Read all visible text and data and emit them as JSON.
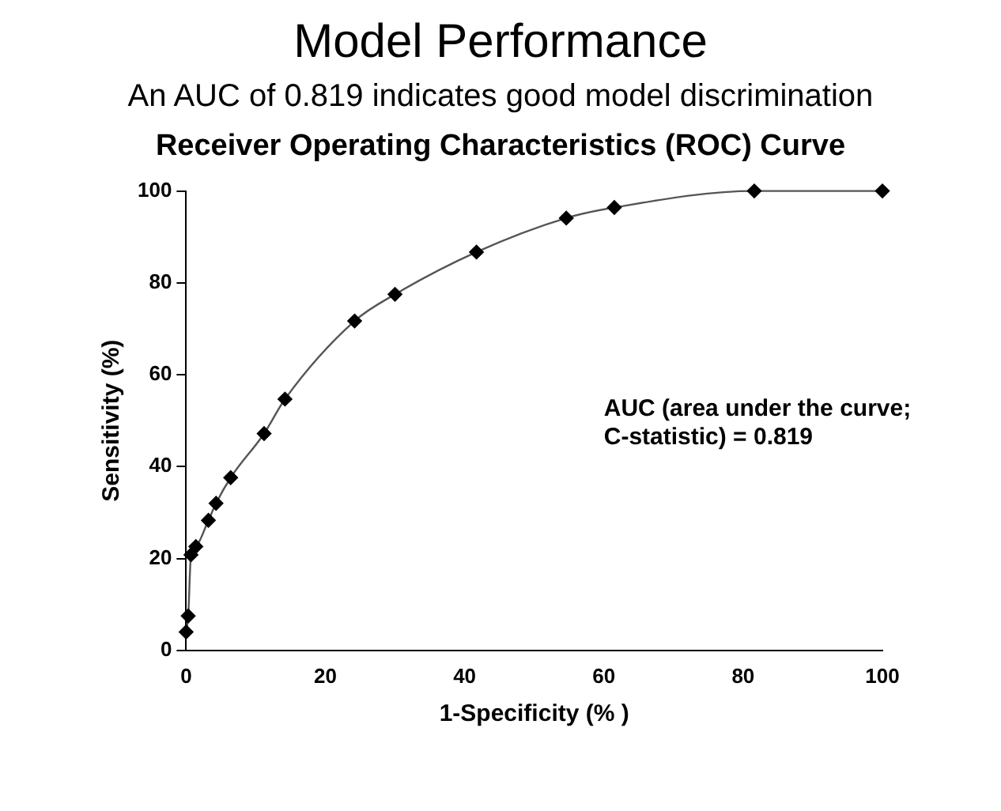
{
  "chart_data": {
    "type": "line",
    "title": "Model Performance",
    "subtitle": "An AUC of 0.819 indicates good model discrimination",
    "xlabel": "1-Specificity (% )",
    "ylabel": "Sensitivity (%)",
    "x": [
      0,
      0.3,
      0.7,
      1.4,
      3.2,
      4.3,
      6.4,
      11.2,
      14.2,
      24.2,
      30,
      41.7,
      54.6,
      61.5,
      81.6,
      100
    ],
    "series": [
      {
        "color": "#000000",
        "values": [
          4,
          7.5,
          20.8,
          22.6,
          28.3,
          32,
          37.6,
          47.2,
          54.7,
          71.7,
          77.5,
          86.7,
          94.1,
          96.4,
          100,
          100
        ]
      }
    ],
    "xlim": [
      0,
      100
    ],
    "xticks": [
      0,
      20,
      40,
      60,
      80,
      100
    ],
    "ylim": [
      0,
      100
    ],
    "yticks": [
      0,
      20,
      40,
      60,
      80,
      100
    ],
    "marker": "diamond",
    "grid": false,
    "legend": false,
    "annotations": [
      "Receiver Operating Characteristics (ROC) Curve",
      "AUC (area under the curve; C-statistic) = 0.819"
    ]
  }
}
